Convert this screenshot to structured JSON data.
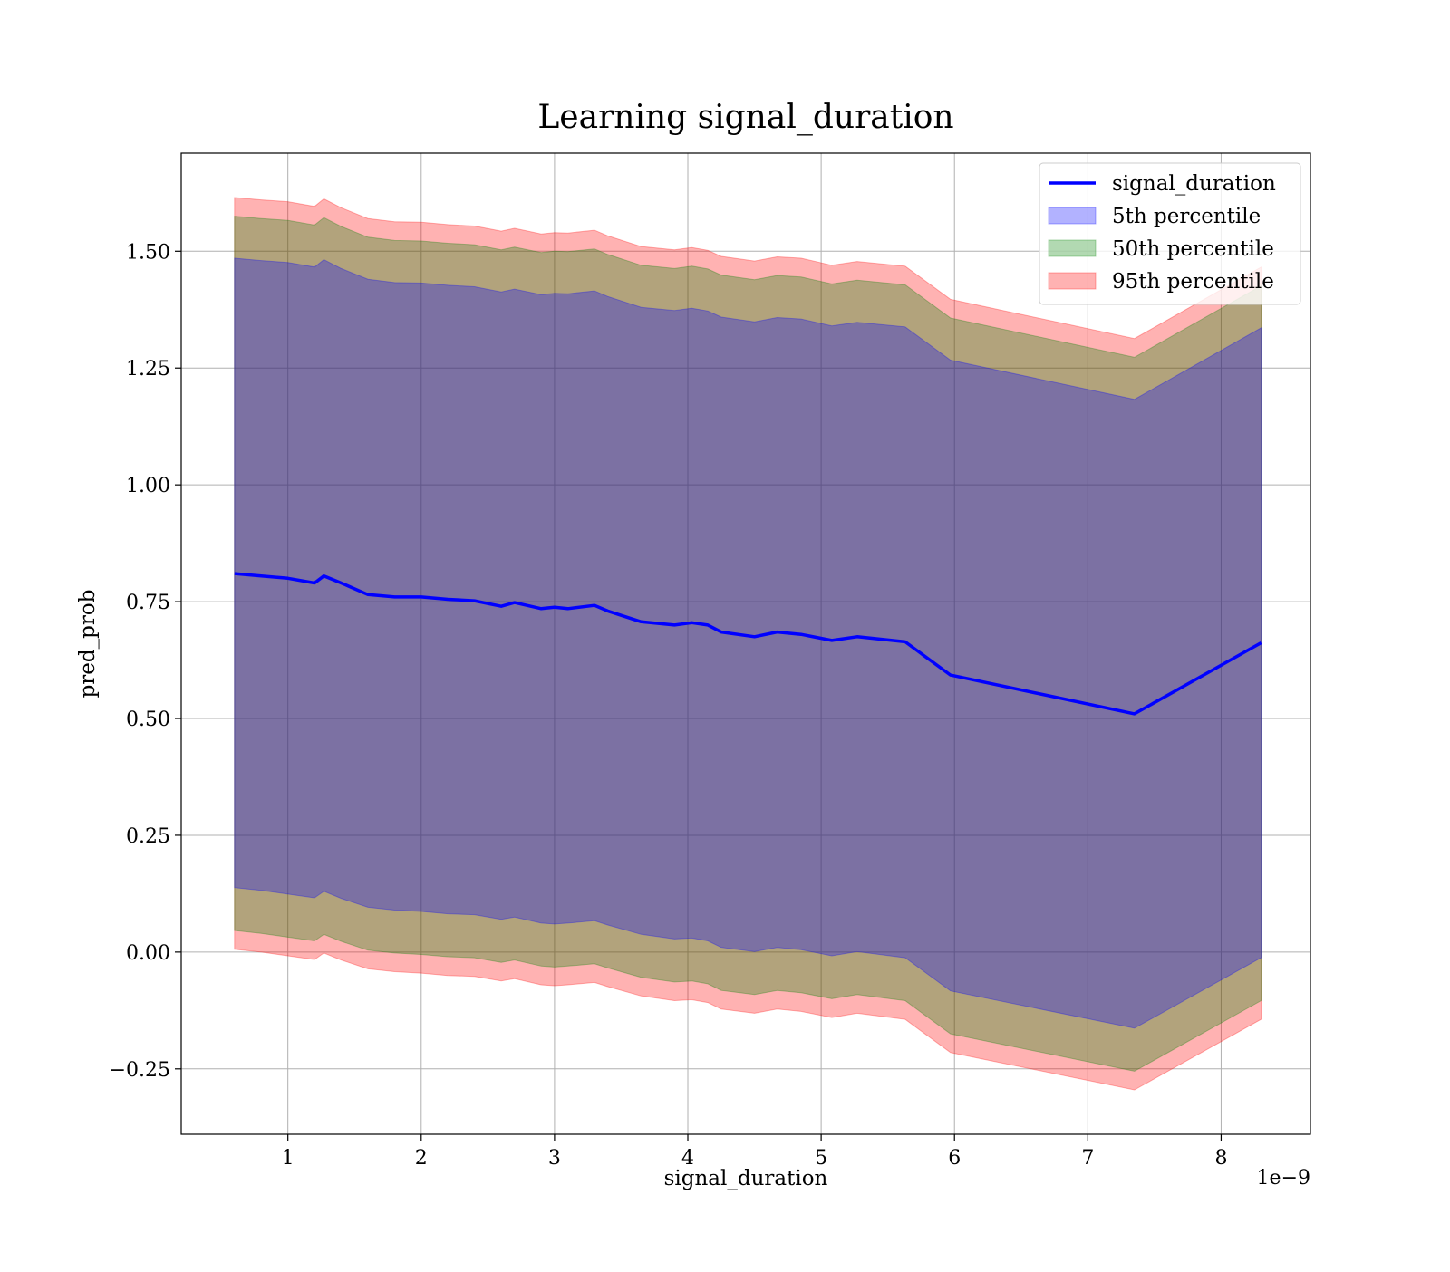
{
  "chart_data": {
    "type": "area",
    "title": "Learning signal_duration",
    "xlabel": "signal_duration",
    "ylabel": "pred_prob",
    "x_offset_label": "1e−9",
    "xlim": [
      0.2,
      8.67
    ],
    "ylim": [
      -0.39,
      1.71
    ],
    "x_ticks": [
      1,
      2,
      3,
      4,
      5,
      6,
      7,
      8
    ],
    "x_tick_labels": [
      "1",
      "2",
      "3",
      "4",
      "5",
      "6",
      "7",
      "8"
    ],
    "y_ticks": [
      -0.25,
      0.0,
      0.25,
      0.5,
      0.75,
      1.0,
      1.25,
      1.5
    ],
    "y_tick_labels": [
      "−0.25",
      "0.00",
      "0.25",
      "0.50",
      "0.75",
      "1.00",
      "1.25",
      "1.50"
    ],
    "grid": true,
    "legend_position": "top-right",
    "x": [
      0.6,
      0.8,
      1.0,
      1.2,
      1.27,
      1.4,
      1.6,
      1.8,
      2.0,
      2.2,
      2.4,
      2.6,
      2.7,
      2.9,
      3.0,
      3.1,
      3.3,
      3.4,
      3.65,
      3.9,
      4.03,
      4.15,
      4.25,
      4.5,
      4.67,
      4.85,
      5.08,
      5.27,
      5.63,
      5.97,
      7.35,
      8.3
    ],
    "series": [
      {
        "name": "signal_duration",
        "kind": "line",
        "color": "#0000ff",
        "values": [
          0.81,
          0.805,
          0.8,
          0.79,
          0.805,
          0.79,
          0.765,
          0.76,
          0.76,
          0.755,
          0.752,
          0.74,
          0.748,
          0.735,
          0.738,
          0.735,
          0.742,
          0.73,
          0.707,
          0.7,
          0.705,
          0.7,
          0.685,
          0.675,
          0.685,
          0.68,
          0.667,
          0.675,
          0.664,
          0.593,
          0.51,
          0.662
        ]
      },
      {
        "name": "5th percentile",
        "kind": "band",
        "color": "#0000ff",
        "lower": [
          0.138,
          0.132,
          0.124,
          0.116,
          0.13,
          0.115,
          0.096,
          0.09,
          0.087,
          0.082,
          0.08,
          0.07,
          0.075,
          0.062,
          0.06,
          0.062,
          0.067,
          0.058,
          0.038,
          0.028,
          0.03,
          0.024,
          0.01,
          0.001,
          0.01,
          0.005,
          -0.008,
          0.001,
          -0.012,
          -0.083,
          -0.163,
          -0.012
        ],
        "upper": [
          1.485,
          1.48,
          1.476,
          1.466,
          1.482,
          1.463,
          1.44,
          1.433,
          1.432,
          1.427,
          1.424,
          1.413,
          1.419,
          1.407,
          1.41,
          1.409,
          1.415,
          1.403,
          1.38,
          1.373,
          1.378,
          1.372,
          1.359,
          1.349,
          1.358,
          1.355,
          1.34,
          1.348,
          1.338,
          1.267,
          1.183,
          1.336
        ]
      },
      {
        "name": "50th percentile",
        "kind": "band",
        "color": "#008000",
        "lower": [
          0.046,
          0.04,
          0.032,
          0.024,
          0.038,
          0.023,
          0.004,
          -0.002,
          -0.005,
          -0.01,
          -0.012,
          -0.022,
          -0.017,
          -0.03,
          -0.032,
          -0.03,
          -0.025,
          -0.034,
          -0.054,
          -0.064,
          -0.062,
          -0.068,
          -0.082,
          -0.091,
          -0.082,
          -0.087,
          -0.1,
          -0.091,
          -0.104,
          -0.175,
          -0.255,
          -0.104
        ],
        "upper": [
          1.575,
          1.57,
          1.566,
          1.556,
          1.572,
          1.553,
          1.53,
          1.523,
          1.522,
          1.517,
          1.514,
          1.503,
          1.509,
          1.497,
          1.5,
          1.499,
          1.505,
          1.493,
          1.47,
          1.463,
          1.468,
          1.462,
          1.449,
          1.439,
          1.448,
          1.445,
          1.43,
          1.438,
          1.428,
          1.357,
          1.273,
          1.426
        ]
      },
      {
        "name": "95th percentile",
        "kind": "band",
        "color": "#ff0000",
        "lower": [
          0.006,
          0.0,
          -0.008,
          -0.016,
          -0.002,
          -0.017,
          -0.036,
          -0.042,
          -0.045,
          -0.05,
          -0.052,
          -0.062,
          -0.057,
          -0.07,
          -0.072,
          -0.07,
          -0.065,
          -0.074,
          -0.094,
          -0.104,
          -0.102,
          -0.108,
          -0.122,
          -0.131,
          -0.122,
          -0.127,
          -0.14,
          -0.131,
          -0.144,
          -0.215,
          -0.295,
          -0.144
        ],
        "upper": [
          1.615,
          1.61,
          1.606,
          1.596,
          1.612,
          1.593,
          1.57,
          1.563,
          1.562,
          1.557,
          1.554,
          1.543,
          1.549,
          1.537,
          1.54,
          1.539,
          1.545,
          1.533,
          1.51,
          1.503,
          1.508,
          1.502,
          1.489,
          1.479,
          1.488,
          1.485,
          1.47,
          1.478,
          1.468,
          1.397,
          1.313,
          1.466
        ]
      }
    ]
  }
}
